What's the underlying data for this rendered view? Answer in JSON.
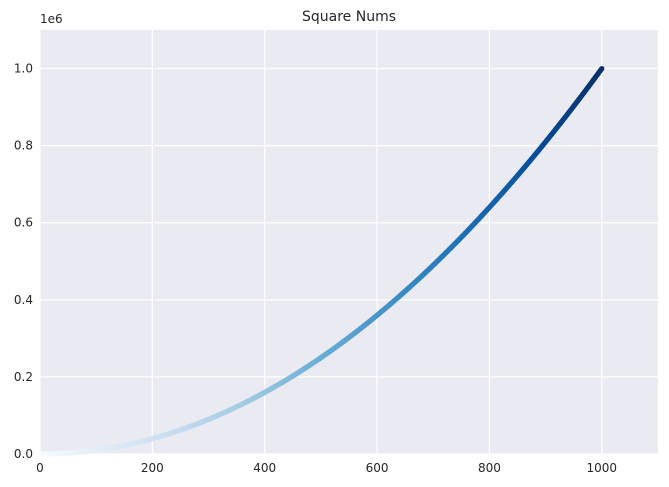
{
  "chart_data": {
    "type": "scatter",
    "title": "Square Nums",
    "xlabel": "",
    "ylabel": "",
    "y_offset_label": "1e6",
    "xlim": [
      0,
      1100
    ],
    "ylim": [
      0,
      1100000
    ],
    "x_ticks": [
      0,
      200,
      400,
      600,
      800,
      1000
    ],
    "y_ticks": [
      0,
      200000,
      400000,
      600000,
      800000,
      1000000
    ],
    "x_tick_labels": [
      "0",
      "200",
      "400",
      "600",
      "800",
      "1000"
    ],
    "y_tick_labels": [
      "0.0",
      "0.2",
      "0.4",
      "0.6",
      "0.8",
      "1.0"
    ],
    "grid": true,
    "colormap": "Blues",
    "color_range": [
      "#f7fbff",
      "#08306b"
    ],
    "background_color": "#eaeaf2",
    "grid_color": "#ffffff",
    "series": [
      {
        "x_start": 1,
        "x_end": 1000,
        "x_step": 1,
        "y_formula": "x^2"
      }
    ]
  }
}
